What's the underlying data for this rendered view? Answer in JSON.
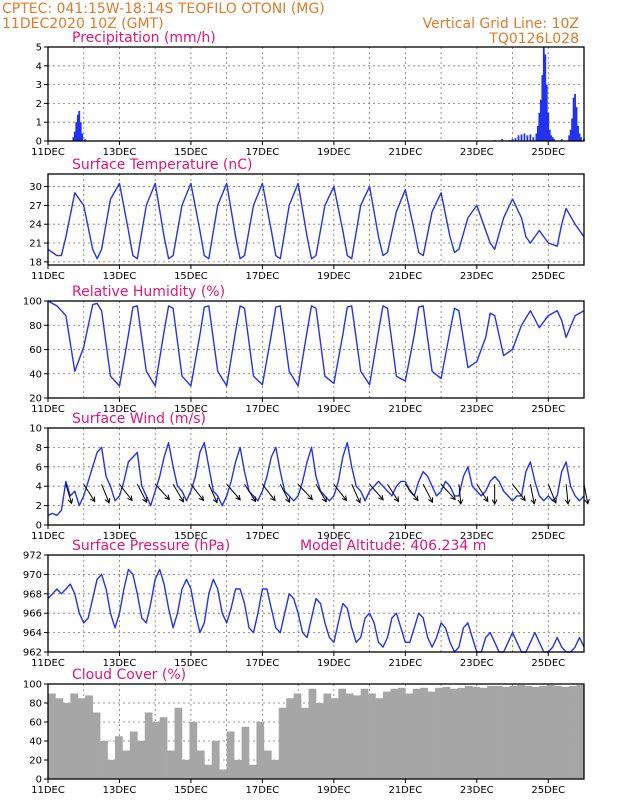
{
  "header": {
    "line1": "CPTEC:   041:15W-18:14S   TEOFILO OTONI (MG)",
    "line2": "11DEC2020 10Z (GMT)",
    "grid_note": "Vertical Grid Line: 10Z",
    "code": "TQ0126L028"
  },
  "colors": {
    "header": "#e07b2a",
    "title": "#e0157a",
    "series": "#2233ee",
    "cloud": "#a6a6a6",
    "wind_arrow": "#000000"
  },
  "x_ticks": [
    "11DEC",
    "13DEC",
    "15DEC",
    "17DEC",
    "19DEC",
    "21DEC",
    "23DEC",
    "25DEC"
  ],
  "chart_data": [
    {
      "type": "bar",
      "title": "Precipitation (mm/h)",
      "x_unit": "hours since 11DEC2020 10Z",
      "ylim": [
        0,
        5
      ],
      "yticks": [
        0,
        1,
        2,
        3,
        4,
        5
      ],
      "x": [
        17,
        18,
        19,
        20,
        21,
        22,
        23,
        25,
        300,
        305,
        310,
        312,
        314,
        316,
        318,
        320,
        322,
        324,
        326,
        328,
        329,
        330,
        331,
        332,
        333,
        334,
        335,
        336,
        337,
        338,
        339,
        340,
        345,
        350,
        351,
        352,
        353,
        354,
        355,
        356,
        357,
        358,
        360
      ],
      "values": [
        0.2,
        0.5,
        1.0,
        1.4,
        1.6,
        1.0,
        0.4,
        0.1,
        0.05,
        0.1,
        0.05,
        0.1,
        0.15,
        0.3,
        0.35,
        0.4,
        0.3,
        0.35,
        0.2,
        0.4,
        0.8,
        1.5,
        2.2,
        3.5,
        5.0,
        4.6,
        3.0,
        1.5,
        0.6,
        0.3,
        0.2,
        0.1,
        0.1,
        0.3,
        0.6,
        1.2,
        2.3,
        2.5,
        1.8,
        0.8,
        0.4,
        0.2,
        0.1
      ]
    },
    {
      "type": "line",
      "title": "Surface Temperature (nC)",
      "ylim": [
        17.5,
        32
      ],
      "yticks": [
        18,
        21,
        24,
        27,
        30
      ],
      "x": [
        0,
        6,
        9,
        12,
        18,
        24,
        30,
        33,
        36,
        42,
        48,
        54,
        57,
        60,
        66,
        72,
        78,
        81,
        84,
        90,
        96,
        102,
        105,
        108,
        114,
        120,
        126,
        129,
        132,
        138,
        144,
        150,
        153,
        156,
        162,
        168,
        174,
        177,
        180,
        186,
        192,
        198,
        201,
        204,
        210,
        216,
        222,
        225,
        228,
        234,
        240,
        246,
        249,
        252,
        258,
        264,
        270,
        273,
        276,
        282,
        288,
        294,
        297,
        300,
        306,
        312,
        318,
        321,
        324,
        330,
        336,
        342,
        345,
        348,
        354,
        360
      ],
      "values": [
        20,
        19,
        19,
        22,
        29,
        27,
        20,
        18.5,
        20,
        28,
        30.5,
        23,
        19,
        18.5,
        27,
        30.5,
        22,
        18.5,
        19,
        27,
        30.5,
        23,
        19,
        18.5,
        27,
        30.5,
        22,
        18.5,
        19,
        27,
        30.5,
        23,
        19,
        18.5,
        27,
        30.5,
        22,
        18.5,
        19,
        27,
        30,
        23,
        19,
        18.5,
        27,
        30,
        22,
        19,
        19.5,
        26,
        29.5,
        23,
        19.5,
        19,
        26,
        29,
        22,
        19.5,
        20,
        25,
        27,
        23,
        21,
        20,
        25,
        28,
        25,
        22,
        21,
        23,
        21,
        20.5,
        24,
        26.5,
        24,
        22
      ]
    },
    {
      "type": "line",
      "title": "Relative Humidity (%)",
      "ylim": [
        20,
        100
      ],
      "yticks": [
        20,
        40,
        60,
        80,
        100
      ],
      "x": [
        0,
        6,
        9,
        12,
        18,
        24,
        30,
        33,
        36,
        42,
        48,
        54,
        57,
        60,
        66,
        72,
        78,
        81,
        84,
        90,
        96,
        102,
        105,
        108,
        114,
        120,
        126,
        129,
        132,
        138,
        144,
        150,
        153,
        156,
        162,
        168,
        174,
        177,
        180,
        186,
        192,
        198,
        201,
        204,
        210,
        216,
        222,
        225,
        228,
        234,
        240,
        246,
        249,
        252,
        258,
        264,
        270,
        273,
        276,
        282,
        288,
        294,
        297,
        300,
        306,
        312,
        318,
        321,
        324,
        330,
        336,
        342,
        345,
        348,
        354,
        360
      ],
      "values": [
        100,
        96,
        92,
        88,
        42,
        62,
        97,
        98,
        92,
        38,
        30,
        72,
        95,
        96,
        42,
        30,
        75,
        96,
        94,
        38,
        30,
        72,
        95,
        96,
        42,
        30,
        75,
        96,
        94,
        38,
        31,
        72,
        95,
        96,
        42,
        30,
        75,
        96,
        94,
        38,
        32,
        72,
        95,
        96,
        42,
        31,
        75,
        96,
        94,
        38,
        34,
        72,
        95,
        96,
        42,
        36,
        75,
        94,
        92,
        45,
        50,
        70,
        90,
        88,
        55,
        60,
        80,
        86,
        92,
        78,
        88,
        92,
        84,
        70,
        88,
        92
      ]
    },
    {
      "type": "line",
      "title": "Surface Wind (m/s)",
      "ylim": [
        0,
        10
      ],
      "yticks": [
        0,
        2,
        4,
        6,
        8,
        10
      ],
      "x": [
        0,
        3,
        6,
        9,
        12,
        15,
        18,
        21,
        24,
        27,
        30,
        33,
        36,
        39,
        42,
        45,
        48,
        51,
        54,
        57,
        60,
        63,
        66,
        69,
        72,
        75,
        78,
        81,
        84,
        87,
        90,
        93,
        96,
        99,
        102,
        105,
        108,
        111,
        114,
        117,
        120,
        123,
        126,
        129,
        132,
        135,
        138,
        141,
        144,
        147,
        150,
        153,
        156,
        159,
        162,
        165,
        168,
        171,
        174,
        177,
        180,
        183,
        186,
        189,
        192,
        195,
        198,
        201,
        204,
        207,
        210,
        213,
        216,
        219,
        222,
        225,
        228,
        231,
        234,
        237,
        240,
        243,
        246,
        249,
        252,
        255,
        258,
        261,
        264,
        267,
        270,
        273,
        276,
        279,
        282,
        285,
        288,
        291,
        294,
        297,
        300,
        303,
        306,
        309,
        312,
        315,
        318,
        321,
        324,
        327,
        330,
        333,
        336,
        339,
        342,
        345,
        348,
        351,
        354,
        357,
        360
      ],
      "values": [
        1,
        1.2,
        1,
        1.5,
        4.5,
        3,
        3.5,
        2,
        3,
        4.5,
        6,
        7.5,
        8,
        5,
        4,
        2.5,
        3,
        4.5,
        6.5,
        7,
        7.5,
        4,
        3,
        2,
        3.5,
        5,
        7,
        8.5,
        6,
        4,
        3.5,
        2.5,
        3.5,
        5,
        7.5,
        8.5,
        6,
        3.5,
        3,
        2,
        3,
        4.5,
        6.5,
        8,
        5.5,
        3.5,
        3,
        2.5,
        3.5,
        5,
        7,
        8,
        5.5,
        3.5,
        3,
        2.5,
        3,
        4.5,
        6.5,
        8,
        5,
        3.5,
        3,
        2.5,
        3,
        4.5,
        7,
        8.5,
        6,
        4,
        3.5,
        2.5,
        3.5,
        4,
        4.5,
        4,
        3.5,
        3,
        4,
        4.5,
        4.5,
        3.5,
        3,
        4.5,
        5.5,
        5,
        4,
        3,
        3.5,
        4.5,
        4,
        3,
        3,
        5,
        6,
        4,
        3.5,
        3,
        3.5,
        4.5,
        5,
        4.5,
        3.5,
        3,
        2.5,
        3,
        3,
        5.5,
        6.5,
        4.5,
        3,
        2.5,
        3,
        2.5,
        3,
        5.5,
        6.5,
        4,
        3,
        2.5,
        3
      ],
      "wind_arrow_times": [
        12,
        24,
        36,
        48,
        60,
        72,
        84,
        96,
        108,
        120,
        132,
        144,
        156,
        168,
        180,
        192,
        204,
        216,
        228,
        240,
        252,
        264,
        276,
        288,
        300,
        312,
        324,
        336,
        348,
        360
      ],
      "wind_arrow_angles_deg": [
        105,
        120,
        110,
        125,
        115,
        130,
        118,
        125,
        112,
        128,
        120,
        125,
        115,
        130,
        118,
        125,
        112,
        128,
        120,
        125,
        115,
        130,
        95,
        120,
        90,
        125,
        100,
        110,
        95,
        100
      ]
    },
    {
      "type": "line",
      "title": "Surface Pressure (hPa)",
      "annotation": "Model Altitude: 406.234 m",
      "ylim": [
        962,
        972
      ],
      "yticks": [
        962,
        964,
        966,
        968,
        970,
        972
      ],
      "x": [
        0,
        3,
        6,
        9,
        12,
        15,
        18,
        21,
        24,
        27,
        30,
        33,
        36,
        39,
        42,
        45,
        48,
        51,
        54,
        57,
        60,
        63,
        66,
        69,
        72,
        75,
        78,
        81,
        84,
        87,
        90,
        93,
        96,
        99,
        102,
        105,
        108,
        111,
        114,
        117,
        120,
        123,
        126,
        129,
        132,
        135,
        138,
        141,
        144,
        147,
        150,
        153,
        156,
        159,
        162,
        165,
        168,
        171,
        174,
        177,
        180,
        183,
        186,
        189,
        192,
        195,
        198,
        201,
        204,
        207,
        210,
        213,
        216,
        219,
        222,
        225,
        228,
        231,
        234,
        237,
        240,
        243,
        246,
        249,
        252,
        255,
        258,
        261,
        264,
        267,
        270,
        273,
        276,
        279,
        282,
        285,
        288,
        291,
        294,
        297,
        300,
        303,
        306,
        309,
        312,
        315,
        318,
        321,
        324,
        327,
        330,
        333,
        336,
        339,
        342,
        345,
        348,
        351,
        354,
        357,
        360
      ],
      "values": [
        967.5,
        968,
        968.5,
        968,
        968.5,
        969,
        968,
        966,
        965,
        965.5,
        967.5,
        969.5,
        970,
        968.5,
        966,
        964.5,
        966,
        968.5,
        970.5,
        970,
        968,
        965.5,
        965,
        967,
        969.5,
        970.5,
        969,
        966.5,
        964.5,
        966,
        968.5,
        969.5,
        968.5,
        966,
        964,
        965,
        968,
        969.5,
        968.5,
        966,
        965,
        966.5,
        968.5,
        968.5,
        967,
        964.5,
        964,
        966,
        968.5,
        968.5,
        966.5,
        964.5,
        964,
        966,
        968,
        967.5,
        966,
        964,
        963.5,
        965.5,
        967.5,
        967,
        965,
        963.5,
        963,
        965,
        967,
        966.5,
        964.5,
        963,
        963.5,
        965.5,
        966,
        965,
        963,
        962.5,
        963.5,
        965.5,
        966,
        964.5,
        963,
        963,
        964.5,
        966,
        965.5,
        963.5,
        962.5,
        963.5,
        965,
        964.5,
        963,
        962,
        962.5,
        964.5,
        965,
        963.5,
        962,
        962,
        963.5,
        964,
        963,
        962,
        962,
        963,
        964,
        963,
        962,
        962,
        963,
        964,
        963,
        962,
        962,
        962.5,
        963.5,
        962.5,
        962,
        962,
        962.5,
        963.5,
        962.5
      ]
    },
    {
      "type": "bar",
      "title": "Cloud Cover (%)",
      "ylim": [
        0,
        100
      ],
      "yticks": [
        0,
        20,
        40,
        60,
        80,
        100
      ],
      "x": [
        0,
        5,
        10,
        15,
        20,
        25,
        30,
        35,
        40,
        45,
        50,
        55,
        60,
        65,
        70,
        75,
        80,
        85,
        90,
        95,
        100,
        105,
        110,
        115,
        120,
        125,
        130,
        135,
        140,
        145,
        150,
        155,
        160,
        165,
        170,
        175,
        180,
        185,
        190,
        195,
        200,
        205,
        210,
        215,
        220,
        225,
        230,
        235,
        240,
        245,
        250,
        255,
        260,
        265,
        270,
        275,
        280,
        285,
        290,
        295,
        300,
        305,
        310,
        315,
        320,
        325,
        330,
        335,
        340,
        345,
        350,
        355
      ],
      "values": [
        90,
        85,
        80,
        90,
        85,
        88,
        70,
        40,
        20,
        45,
        30,
        50,
        40,
        70,
        60,
        65,
        30,
        75,
        20,
        60,
        30,
        15,
        40,
        10,
        50,
        20,
        55,
        15,
        60,
        30,
        20,
        75,
        85,
        90,
        75,
        95,
        80,
        90,
        85,
        95,
        90,
        88,
        95,
        90,
        85,
        92,
        95,
        96,
        90,
        95,
        96,
        92,
        96,
        97,
        95,
        96,
        98,
        97,
        96,
        98,
        98,
        97,
        98,
        99,
        98,
        97,
        98,
        99,
        98,
        97,
        98,
        99
      ]
    }
  ]
}
